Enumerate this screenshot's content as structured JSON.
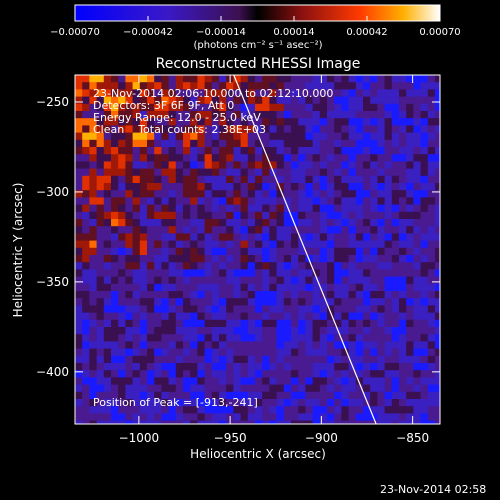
{
  "chart_data": {
    "type": "heatmap",
    "title": "Reconstructed RHESSI Image",
    "xlabel": "Heliocentric X (arcsec)",
    "ylabel": "Heliocentric Y (arcsec)",
    "xlim": [
      -1035,
      -835
    ],
    "ylim": [
      -429,
      -235
    ],
    "x_ticks": [
      {
        "value": -1000,
        "label": "−1000"
      },
      {
        "value": -950,
        "label": "−950"
      },
      {
        "value": -900,
        "label": "−900"
      },
      {
        "value": -850,
        "label": "−850"
      }
    ],
    "y_ticks": [
      {
        "value": -250,
        "label": "−250"
      },
      {
        "value": -300,
        "label": "−300"
      },
      {
        "value": -350,
        "label": "−350"
      },
      {
        "value": -400,
        "label": "−400"
      }
    ],
    "colorbar": {
      "range": [
        -0.0007,
        0.0007
      ],
      "tick_labels": [
        "−0.00070",
        "−0.00042",
        "−0.00014",
        "0.00014",
        "0.00042",
        "0.00070"
      ],
      "units_label": "(photons cm⁻² s⁻¹ asec⁻²)"
    },
    "limb_line": {
      "x": [
        -948,
        -870
      ],
      "y": [
        -235,
        -429
      ],
      "color": "#ffffff"
    },
    "peak": {
      "x": -913,
      "y": -241
    }
  },
  "annotations": {
    "time_range": "23-Nov-2014 02:06:10.000 to 02:12:10.000",
    "detectors": "Detectors: 3F 6F 9F, Att 0",
    "energy": "Energy Range: 12.0 - 25.0 keV",
    "clean": "Clean    Total counts: 2.38E+03",
    "peak_label": "Position of Peak = [-913,-241]"
  },
  "timestamp": "23-Nov-2014 02:58",
  "colors": {
    "background": "#000000",
    "foreground": "#ffffff"
  }
}
